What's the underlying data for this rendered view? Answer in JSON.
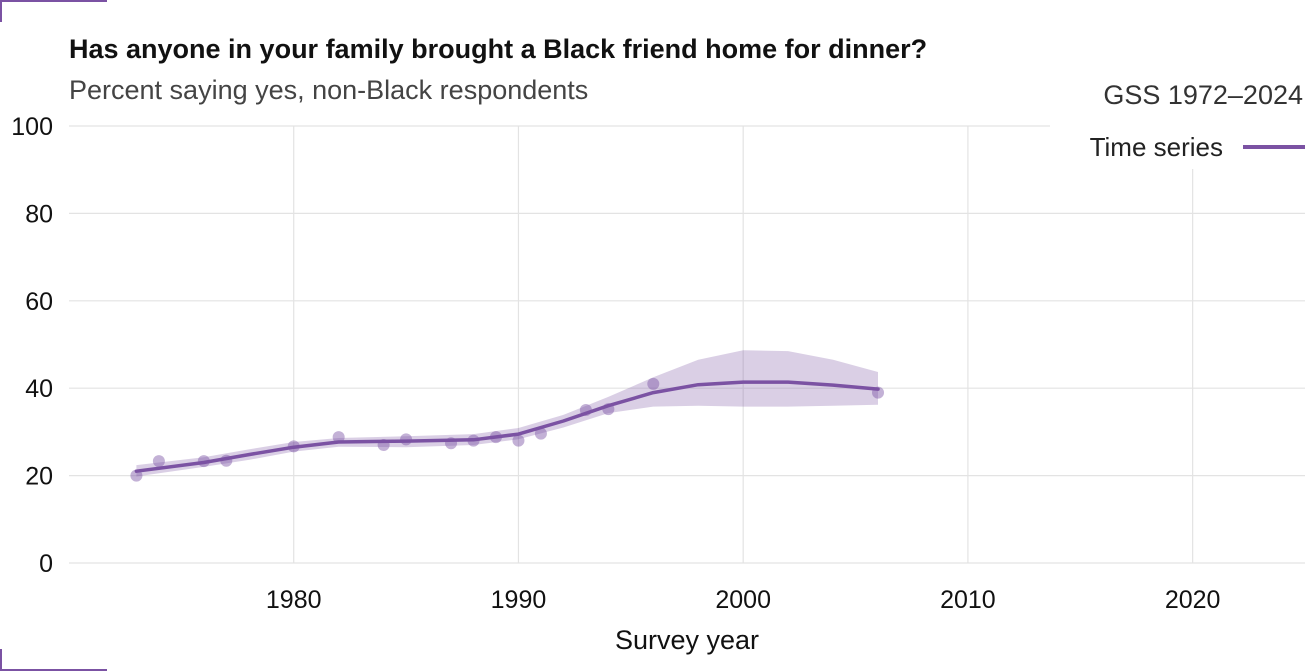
{
  "header": {
    "title": "Has anyone in your family brought a Black friend home for dinner?",
    "subtitle": "Percent saying yes, non-Black respondents",
    "source": "GSS 1972–2024"
  },
  "legend": {
    "label": "Time series",
    "color": "#7b52a3"
  },
  "chart_data": {
    "type": "line",
    "title": "Has anyone in your family brought a Black friend home for dinner?",
    "subtitle": "Percent saying yes, non-Black respondents",
    "xlabel": "Survey year",
    "ylabel": "",
    "xlim": [
      1970,
      2025
    ],
    "ylim": [
      0,
      100
    ],
    "x_ticks": [
      1980,
      1990,
      2000,
      2010,
      2020
    ],
    "y_ticks": [
      0,
      20,
      40,
      60,
      80,
      100
    ],
    "grid": true,
    "legend_position": "top-right",
    "series": [
      {
        "name": "Time series",
        "color": "#7b52a3",
        "points": {
          "x": [
            1973,
            1974,
            1976,
            1977,
            1980,
            1982,
            1984,
            1985,
            1987,
            1988,
            1989,
            1990,
            1991,
            1993,
            1994,
            1996,
            2006
          ],
          "y": [
            20.0,
            23.3,
            23.3,
            23.4,
            26.7,
            28.8,
            27.0,
            28.3,
            27.4,
            28.0,
            28.8,
            28.0,
            29.6,
            35.0,
            35.2,
            41.0,
            39.0
          ]
        },
        "smooth": {
          "x": [
            1973,
            1976,
            1978,
            1980,
            1982,
            1985,
            1988,
            1990,
            1992,
            1994,
            1996,
            1998,
            2000,
            2002,
            2004,
            2006
          ],
          "y": [
            21.0,
            23.0,
            24.8,
            26.5,
            27.7,
            27.9,
            28.2,
            29.5,
            32.5,
            36.0,
            39.0,
            40.8,
            41.4,
            41.4,
            40.7,
            39.8
          ],
          "lower": [
            19.8,
            22.0,
            23.6,
            25.5,
            26.6,
            26.5,
            27.0,
            28.3,
            31.0,
            34.3,
            35.8,
            36.0,
            35.8,
            35.8,
            36.0,
            36.2
          ],
          "upper": [
            22.4,
            24.2,
            26.0,
            27.7,
            28.6,
            29.0,
            29.5,
            30.9,
            33.9,
            38.0,
            42.5,
            46.5,
            48.7,
            48.5,
            46.5,
            43.7
          ]
        }
      }
    ]
  }
}
